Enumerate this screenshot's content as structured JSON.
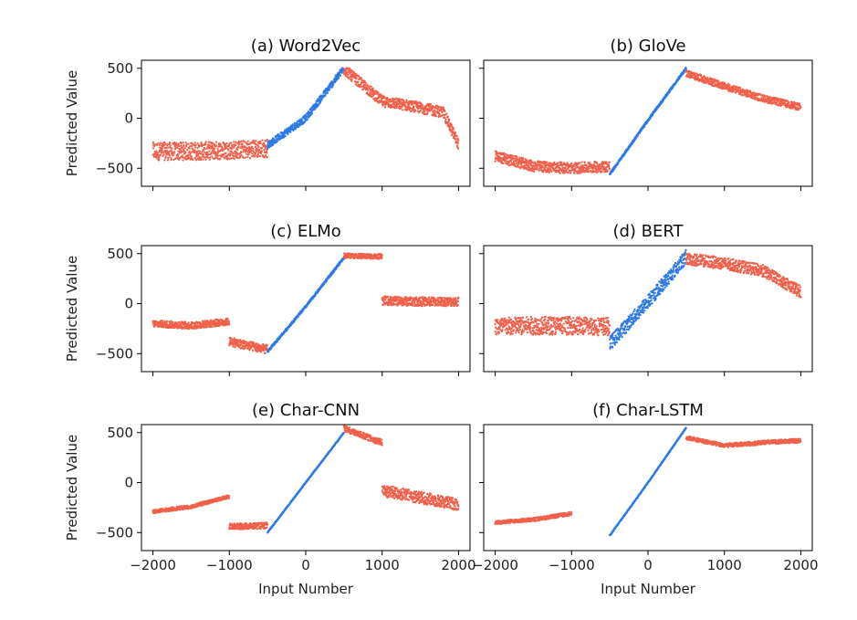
{
  "chart_data": {
    "type": "scatter",
    "colors": {
      "extrapolation": "#f0604a",
      "interpolation": "#2f7ae5"
    },
    "shared": {
      "xlim": [
        -2150,
        2150
      ],
      "ylim": [
        -680,
        580
      ],
      "xticks": [
        -2000,
        -1000,
        0,
        1000,
        2000
      ],
      "xtick_labels": [
        "−2000",
        "−1000",
        "0",
        "1000",
        "2000"
      ],
      "yticks": [
        500,
        0,
        -500
      ],
      "ytick_labels": [
        "500",
        "0",
        "−500"
      ],
      "xlabel": "Input Number",
      "ylabel": "Predicted Value"
    },
    "panels": [
      {
        "title": "(a) Word2Vec",
        "series": [
          {
            "name": "extrapolation-left",
            "color": "extrapolation",
            "x": [
              -2000,
              -1500,
              -1000,
              -500
            ],
            "y": [
              -330,
              -330,
              -320,
              -300
            ],
            "spread": 90
          },
          {
            "name": "interpolation",
            "color": "interpolation",
            "x": [
              -500,
              0,
              500
            ],
            "y": [
              -270,
              0,
              500
            ],
            "spread": 35
          },
          {
            "name": "extrapolation-right",
            "color": "extrapolation",
            "x": [
              500,
              800,
              1000,
              1400,
              1800,
              2000
            ],
            "y": [
              490,
              300,
              170,
              120,
              60,
              -260
            ],
            "spread": 55
          }
        ]
      },
      {
        "title": "(b) GloVe",
        "series": [
          {
            "name": "extrapolation-left",
            "color": "extrapolation",
            "x": [
              -2000,
              -1500,
              -1000,
              -500
            ],
            "y": [
              -380,
              -480,
              -500,
              -480
            ],
            "spread": 55
          },
          {
            "name": "interpolation",
            "color": "interpolation",
            "x": [
              -500,
              0,
              500
            ],
            "y": [
              -560,
              -20,
              500
            ],
            "spread": 12
          },
          {
            "name": "extrapolation-right",
            "color": "extrapolation",
            "x": [
              500,
              1000,
              1500,
              2000
            ],
            "y": [
              450,
              320,
              200,
              110
            ],
            "spread": 35
          }
        ]
      },
      {
        "title": "(c) ELMo",
        "series": [
          {
            "name": "extrapolation-left",
            "color": "extrapolation",
            "x": [
              -2000,
              -1500,
              -1000
            ],
            "y": [
              -200,
              -220,
              -180
            ],
            "spread": 35
          },
          {
            "name": "extrapolation-mid",
            "color": "extrapolation",
            "x": [
              -1000,
              -500
            ],
            "y": [
              -380,
              -460
            ],
            "spread": 45
          },
          {
            "name": "interpolation",
            "color": "interpolation",
            "x": [
              -500,
              0,
              500
            ],
            "y": [
              -480,
              -30,
              460
            ],
            "spread": 12
          },
          {
            "name": "extrapolation-right",
            "color": "extrapolation",
            "x": [
              500,
              1000
            ],
            "y": [
              480,
              470
            ],
            "spread": 25
          },
          {
            "name": "extrapolation-far",
            "color": "extrapolation",
            "x": [
              1000,
              1500,
              2000
            ],
            "y": [
              30,
              20,
              20
            ],
            "spread": 45
          }
        ]
      },
      {
        "title": "(d) BERT",
        "series": [
          {
            "name": "extrapolation-left",
            "color": "extrapolation",
            "x": [
              -2000,
              -1500,
              -1000,
              -500
            ],
            "y": [
              -230,
              -220,
              -220,
              -230
            ],
            "spread": 90
          },
          {
            "name": "interpolation",
            "color": "interpolation",
            "x": [
              -500,
              0,
              500
            ],
            "y": [
              -400,
              20,
              470
            ],
            "spread": 70
          },
          {
            "name": "extrapolation-right",
            "color": "extrapolation",
            "x": [
              500,
              1000,
              1500,
              2000
            ],
            "y": [
              450,
              400,
              330,
              120
            ],
            "spread": 60
          }
        ]
      },
      {
        "title": "(e) Char-CNN",
        "series": [
          {
            "name": "extrapolation-left",
            "color": "extrapolation",
            "x": [
              -2000,
              -1500,
              -1000
            ],
            "y": [
              -290,
              -240,
              -140
            ],
            "spread": 18
          },
          {
            "name": "extrapolation-mid",
            "color": "extrapolation",
            "x": [
              -1000,
              -500
            ],
            "y": [
              -440,
              -430
            ],
            "spread": 30
          },
          {
            "name": "interpolation",
            "color": "interpolation",
            "x": [
              -500,
              0,
              500
            ],
            "y": [
              -500,
              0,
              500
            ],
            "spread": 5
          },
          {
            "name": "extrapolation-right",
            "color": "extrapolation",
            "x": [
              500,
              1000
            ],
            "y": [
              540,
              400
            ],
            "spread": 30
          },
          {
            "name": "extrapolation-far",
            "color": "extrapolation",
            "x": [
              1000,
              1500,
              2000
            ],
            "y": [
              -80,
              -150,
              -220
            ],
            "spread": 60
          }
        ]
      },
      {
        "title": "(f) Char-LSTM",
        "series": [
          {
            "name": "extrapolation-left",
            "color": "extrapolation",
            "x": [
              -2000,
              -1500,
              -1000
            ],
            "y": [
              -400,
              -370,
              -310
            ],
            "spread": 18
          },
          {
            "name": "interpolation",
            "color": "interpolation",
            "x": [
              -500,
              0,
              500
            ],
            "y": [
              -530,
              0,
              550
            ],
            "spread": 5
          },
          {
            "name": "extrapolation-right",
            "color": "extrapolation",
            "x": [
              500,
              1000,
              1500,
              2000
            ],
            "y": [
              450,
              370,
              400,
              420
            ],
            "spread": 20
          }
        ]
      }
    ]
  }
}
